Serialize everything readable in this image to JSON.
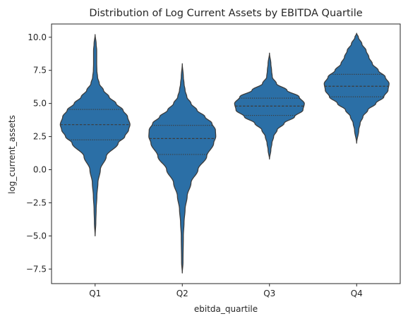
{
  "chart_data": {
    "type": "violin",
    "title": "Distribution of Log Current Assets by EBITDA Quartile",
    "xlabel": "ebitda_quartile",
    "ylabel": "log_current_assets",
    "categories": [
      "Q1",
      "Q2",
      "Q3",
      "Q4"
    ],
    "ylim": [
      -8.6,
      11.0
    ],
    "yticks": [
      -7.5,
      -5.0,
      -2.5,
      0.0,
      2.5,
      5.0,
      7.5,
      10.0
    ],
    "ytick_labels": [
      "−7.5",
      "−5.0",
      "−2.5",
      "0.0",
      "2.5",
      "5.0",
      "7.5",
      "10.0"
    ],
    "grid": false,
    "color": "#2b6fa6",
    "edge_color": "#3c3c3c",
    "violins": [
      {
        "category": "Q1",
        "min": -5.0,
        "max": 10.2,
        "q1": 2.25,
        "median": 3.4,
        "q3": 4.55,
        "profile": [
          [
            -5.0,
            0.0
          ],
          [
            -4.0,
            0.02
          ],
          [
            -3.0,
            0.03
          ],
          [
            -2.0,
            0.05
          ],
          [
            -1.0,
            0.08
          ],
          [
            0.0,
            0.15
          ],
          [
            1.0,
            0.32
          ],
          [
            2.0,
            0.66
          ],
          [
            2.5,
            0.85
          ],
          [
            3.0,
            0.96
          ],
          [
            3.4,
            1.0
          ],
          [
            4.0,
            0.93
          ],
          [
            4.5,
            0.8
          ],
          [
            5.0,
            0.6
          ],
          [
            5.5,
            0.4
          ],
          [
            6.0,
            0.24
          ],
          [
            6.5,
            0.12
          ],
          [
            7.0,
            0.07
          ],
          [
            7.5,
            0.05
          ],
          [
            8.0,
            0.045
          ],
          [
            9.0,
            0.045
          ],
          [
            9.5,
            0.03
          ],
          [
            10.2,
            0.0
          ]
        ]
      },
      {
        "category": "Q2",
        "min": -7.8,
        "max": 8.0,
        "q1": 1.15,
        "median": 2.35,
        "q3": 3.35,
        "profile": [
          [
            -7.8,
            0.0
          ],
          [
            -7.0,
            0.02
          ],
          [
            -5.0,
            0.03
          ],
          [
            -4.0,
            0.05
          ],
          [
            -3.0,
            0.08
          ],
          [
            -2.0,
            0.14
          ],
          [
            -1.0,
            0.25
          ],
          [
            0.0,
            0.45
          ],
          [
            1.0,
            0.7
          ],
          [
            2.0,
            0.9
          ],
          [
            2.5,
            0.96
          ],
          [
            3.0,
            0.95
          ],
          [
            3.5,
            0.85
          ],
          [
            4.0,
            0.65
          ],
          [
            4.5,
            0.42
          ],
          [
            5.0,
            0.25
          ],
          [
            5.5,
            0.13
          ],
          [
            6.0,
            0.08
          ],
          [
            6.5,
            0.05
          ],
          [
            7.0,
            0.03
          ],
          [
            8.0,
            0.0
          ]
        ]
      },
      {
        "category": "Q3",
        "min": 0.8,
        "max": 8.8,
        "q1": 4.1,
        "median": 4.8,
        "q3": 5.4,
        "profile": [
          [
            0.8,
            0.0
          ],
          [
            1.5,
            0.04
          ],
          [
            2.0,
            0.07
          ],
          [
            2.5,
            0.12
          ],
          [
            3.0,
            0.22
          ],
          [
            3.5,
            0.42
          ],
          [
            4.0,
            0.72
          ],
          [
            4.5,
            0.96
          ],
          [
            5.0,
            1.0
          ],
          [
            5.5,
            0.85
          ],
          [
            6.0,
            0.5
          ],
          [
            6.5,
            0.2
          ],
          [
            7.0,
            0.08
          ],
          [
            7.5,
            0.06
          ],
          [
            8.0,
            0.04
          ],
          [
            8.8,
            0.0
          ]
        ]
      },
      {
        "category": "Q4",
        "min": 2.0,
        "max": 10.3,
        "q1": 5.5,
        "median": 6.3,
        "q3": 7.2,
        "profile": [
          [
            2.0,
            0.0
          ],
          [
            3.0,
            0.06
          ],
          [
            3.5,
            0.1
          ],
          [
            4.0,
            0.18
          ],
          [
            4.5,
            0.32
          ],
          [
            5.0,
            0.55
          ],
          [
            5.5,
            0.78
          ],
          [
            6.0,
            0.9
          ],
          [
            6.5,
            0.93
          ],
          [
            7.0,
            0.82
          ],
          [
            7.5,
            0.62
          ],
          [
            8.0,
            0.45
          ],
          [
            8.5,
            0.35
          ],
          [
            9.0,
            0.27
          ],
          [
            9.5,
            0.15
          ],
          [
            10.0,
            0.05
          ],
          [
            10.3,
            0.0
          ]
        ]
      }
    ]
  }
}
